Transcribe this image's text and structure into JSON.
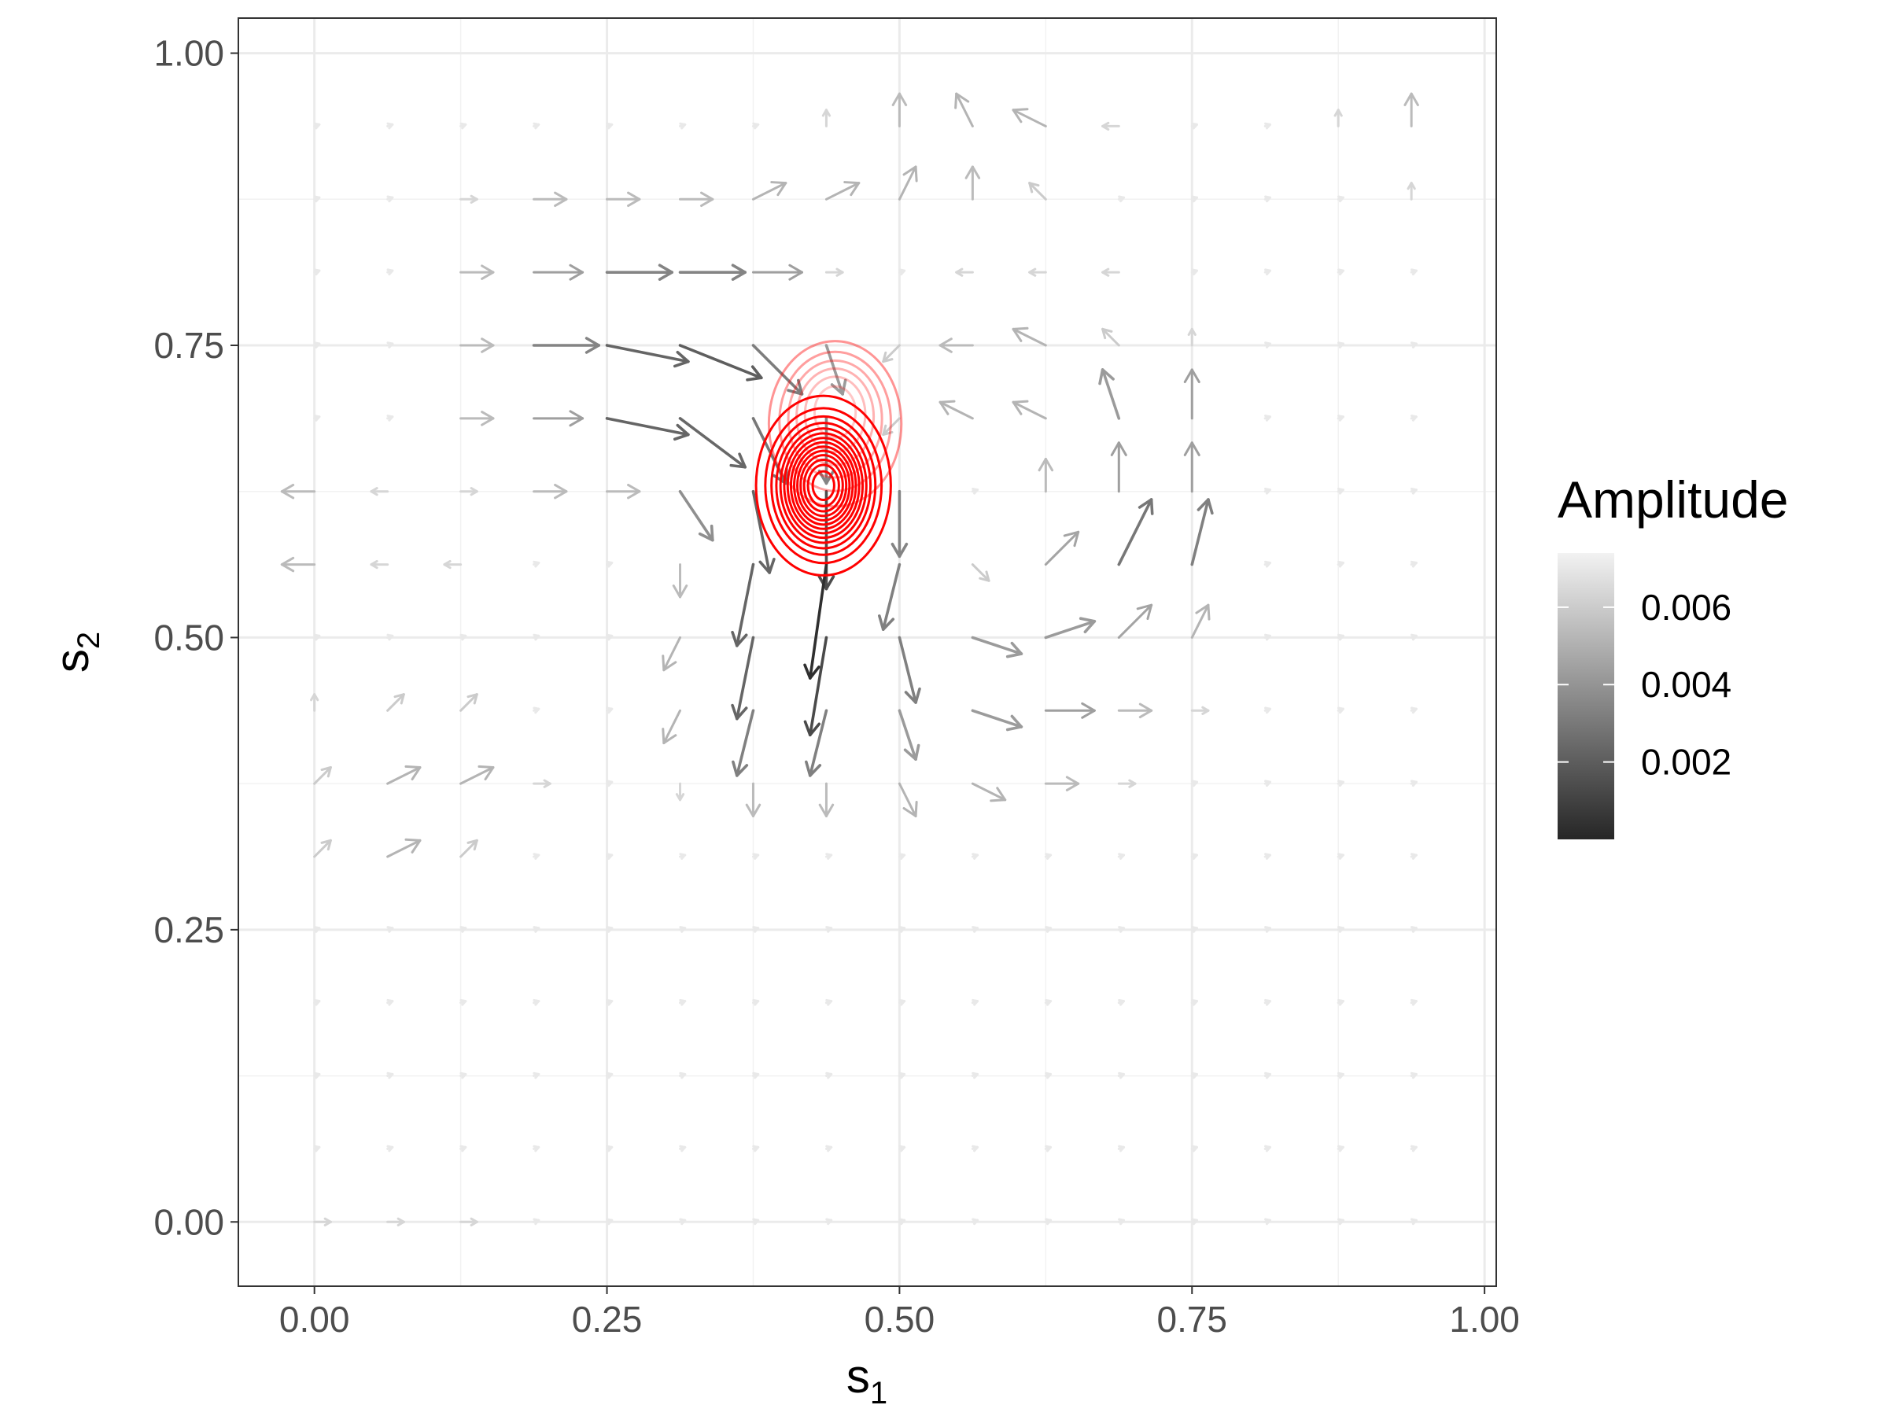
{
  "chart_data": {
    "type": "vector-field-contour",
    "xlabel": "s",
    "xlabel_sub": "1",
    "ylabel": "s",
    "ylabel_sub": "2",
    "xlim": [
      -0.065,
      1.01
    ],
    "ylim": [
      -0.055,
      1.03
    ],
    "xticks": [
      0.0,
      0.25,
      0.5,
      0.75,
      1.0
    ],
    "xtick_labels": [
      "0.00",
      "0.25",
      "0.50",
      "0.75",
      "1.00"
    ],
    "yticks": [
      0.0,
      0.25,
      0.5,
      0.75,
      1.0
    ],
    "ytick_labels": [
      "0.00",
      "0.25",
      "0.50",
      "0.75",
      "1.00"
    ],
    "grid": true,
    "legend": {
      "title": "Amplitude",
      "position": "right",
      "range": [
        0,
        0.0074
      ],
      "breaks": [
        0.002,
        0.004,
        0.006
      ],
      "labels": [
        "0.002",
        "0.004",
        "0.006"
      ],
      "low_color": "#f2f2f2",
      "high_color": "#262626"
    },
    "contour": {
      "color": "#ff0000",
      "center": [
        0.435,
        0.63
      ],
      "sigma": [
        0.045,
        0.06
      ],
      "secondary_center": [
        0.445,
        0.695
      ],
      "secondary_sigma": [
        0.04,
        0.05
      ],
      "levels": 14
    },
    "vector_field": {
      "x_grid": [
        0.0,
        0.0625,
        0.125,
        0.1875,
        0.25,
        0.3125,
        0.375,
        0.4375,
        0.5,
        0.5625,
        0.625,
        0.6875,
        0.75,
        0.8125,
        0.875,
        0.9375
      ],
      "y_grid": [
        0.9375,
        0.875,
        0.8125,
        0.75,
        0.6875,
        0.625,
        0.5625,
        0.5,
        0.4375,
        0.375,
        0.3125,
        0.25,
        0.1875,
        0.125,
        0.0625,
        0.0
      ],
      "u": [
        [
          0.0,
          0.0,
          0.0,
          0.0,
          0.0,
          0.0,
          0.0,
          0.0,
          0.0,
          -0.001,
          -0.002,
          -0.001,
          0.0,
          0.0,
          0.0,
          0.0
        ],
        [
          0.0,
          0.0,
          0.001,
          0.002,
          0.002,
          0.002,
          0.002,
          0.002,
          0.001,
          0.0,
          -0.001,
          0.0,
          0.0,
          0.0,
          0.0,
          0.0
        ],
        [
          0.0,
          0.0,
          0.002,
          0.003,
          0.004,
          0.004,
          0.003,
          0.001,
          0.0,
          -0.001,
          -0.001,
          -0.001,
          0.0,
          0.0,
          0.0,
          0.0
        ],
        [
          0.0,
          0.0,
          0.002,
          0.004,
          0.005,
          0.005,
          0.003,
          0.001,
          -0.001,
          -0.002,
          -0.002,
          -0.001,
          0.0,
          0.0,
          0.0,
          0.0
        ],
        [
          0.0,
          0.0,
          0.002,
          0.003,
          0.005,
          0.004,
          0.002,
          0.0,
          -0.001,
          -0.002,
          -0.002,
          -0.001,
          0.0,
          0.0,
          0.0,
          0.0
        ],
        [
          -0.002,
          -0.001,
          0.001,
          0.002,
          0.002,
          0.002,
          0.001,
          0.0,
          0.0,
          0.0,
          0.0,
          0.0,
          0.0,
          0.0,
          0.0,
          0.0
        ],
        [
          -0.002,
          -0.001,
          -0.001,
          0.0,
          0.0,
          0.0,
          -0.001,
          -0.001,
          -0.001,
          0.001,
          0.002,
          0.002,
          0.001,
          0.0,
          0.0,
          0.0
        ],
        [
          0.0,
          0.0,
          0.0,
          0.0,
          0.0,
          -0.001,
          -0.001,
          -0.001,
          0.001,
          0.003,
          0.003,
          0.002,
          0.001,
          0.0,
          0.0,
          0.0
        ],
        [
          0.0,
          0.001,
          0.001,
          0.0,
          0.0,
          -0.001,
          -0.001,
          -0.001,
          0.001,
          0.003,
          0.003,
          0.002,
          0.001,
          0.0,
          0.0,
          0.0
        ],
        [
          0.001,
          0.002,
          0.002,
          0.001,
          0.0,
          0.0,
          0.0,
          0.0,
          0.001,
          0.002,
          0.002,
          0.001,
          0.0,
          0.0,
          0.0,
          0.0
        ],
        [
          0.001,
          0.002,
          0.001,
          0.0,
          0.0,
          0.0,
          0.0,
          0.0,
          0.0,
          0.0,
          0.0,
          0.0,
          0.0,
          0.0,
          0.0,
          0.0
        ],
        [
          0.0,
          0.0,
          0.0,
          0.0,
          0.0,
          0.0,
          0.0,
          0.0,
          0.0,
          0.0,
          0.0,
          0.0,
          0.0,
          0.0,
          0.0,
          0.0
        ],
        [
          0.0,
          0.0,
          0.0,
          0.0,
          0.0,
          0.0,
          0.0,
          0.0,
          0.0,
          0.0,
          0.0,
          0.0,
          0.0,
          0.0,
          0.0,
          0.0
        ],
        [
          0.0,
          0.0,
          0.0,
          0.0,
          0.0,
          0.0,
          0.0,
          0.0,
          0.0,
          0.0,
          0.0,
          0.0,
          0.0,
          0.0,
          0.0,
          0.0
        ],
        [
          0.0,
          0.0,
          0.0,
          0.0,
          0.0,
          0.0,
          0.0,
          0.0,
          0.0,
          0.0,
          0.0,
          0.0,
          0.0,
          0.0,
          0.0,
          0.0
        ],
        [
          0.001,
          0.001,
          0.001,
          0.0,
          0.0,
          0.0,
          0.0,
          0.0,
          0.0,
          0.0,
          0.0,
          0.0,
          0.0,
          0.0,
          0.0,
          0.0
        ]
      ],
      "v": [
        [
          0.0,
          0.0,
          0.0,
          0.0,
          0.0,
          0.0,
          0.0,
          0.001,
          0.002,
          0.002,
          0.001,
          0.0,
          0.0,
          0.0,
          0.001,
          0.002
        ],
        [
          0.0,
          0.0,
          0.0,
          0.0,
          0.0,
          0.0,
          0.001,
          0.001,
          0.002,
          0.002,
          0.001,
          0.0,
          0.0,
          0.0,
          0.0,
          0.001
        ],
        [
          0.0,
          0.0,
          0.0,
          0.0,
          0.0,
          0.0,
          0.0,
          0.0,
          0.0,
          0.0,
          0.0,
          0.0,
          0.0,
          0.0,
          0.0,
          0.0
        ],
        [
          0.0,
          0.0,
          0.0,
          0.0,
          -0.001,
          -0.002,
          -0.003,
          -0.003,
          -0.001,
          0.0,
          0.001,
          0.001,
          0.001,
          0.0,
          0.0,
          0.0
        ],
        [
          0.0,
          0.0,
          0.0,
          0.0,
          -0.001,
          -0.003,
          -0.004,
          -0.004,
          -0.001,
          0.001,
          0.001,
          0.003,
          0.003,
          0.0,
          0.0,
          0.0
        ],
        [
          0.0,
          0.0,
          0.0,
          0.0,
          0.0,
          -0.003,
          -0.005,
          -0.006,
          -0.004,
          0.0,
          0.002,
          0.003,
          0.003,
          0.0,
          0.0,
          0.0
        ],
        [
          0.0,
          0.0,
          0.0,
          0.0,
          0.0,
          -0.002,
          -0.005,
          -0.007,
          -0.004,
          -0.001,
          0.002,
          0.004,
          0.004,
          0.0,
          0.0,
          0.0
        ],
        [
          0.0,
          0.0,
          0.0,
          0.0,
          0.0,
          -0.002,
          -0.005,
          -0.006,
          -0.004,
          -0.001,
          0.001,
          0.002,
          0.002,
          0.0,
          0.0,
          0.0
        ],
        [
          0.001,
          0.001,
          0.001,
          0.0,
          0.0,
          -0.002,
          -0.004,
          -0.004,
          -0.003,
          -0.001,
          0.0,
          0.0,
          0.0,
          0.0,
          0.0,
          0.0
        ],
        [
          0.001,
          0.001,
          0.001,
          0.0,
          0.0,
          -0.001,
          -0.002,
          -0.002,
          -0.002,
          -0.001,
          0.0,
          0.0,
          0.0,
          0.0,
          0.0,
          0.0
        ],
        [
          0.001,
          0.001,
          0.001,
          0.0,
          0.0,
          0.0,
          0.0,
          0.0,
          0.0,
          0.0,
          0.0,
          0.0,
          0.0,
          0.0,
          0.0,
          0.0
        ],
        [
          0.0,
          0.0,
          0.0,
          0.0,
          0.0,
          0.0,
          0.0,
          0.0,
          0.0,
          0.0,
          0.0,
          0.0,
          0.0,
          0.0,
          0.0,
          0.0
        ],
        [
          0.0,
          0.0,
          0.0,
          0.0,
          0.0,
          0.0,
          0.0,
          0.0,
          0.0,
          0.0,
          0.0,
          0.0,
          0.0,
          0.0,
          0.0,
          0.0
        ],
        [
          0.0,
          0.0,
          0.0,
          0.0,
          0.0,
          0.0,
          0.0,
          0.0,
          0.0,
          0.0,
          0.0,
          0.0,
          0.0,
          0.0,
          0.0,
          0.0
        ],
        [
          0.0,
          0.0,
          0.0,
          0.0,
          0.0,
          0.0,
          0.0,
          0.0,
          0.0,
          0.0,
          0.0,
          0.0,
          0.0,
          0.0,
          0.0,
          0.0
        ],
        [
          0.0,
          0.0,
          0.0,
          0.0,
          0.0,
          0.0,
          0.0,
          0.0,
          0.0,
          0.0,
          0.0,
          0.0,
          0.0,
          0.0,
          0.0,
          0.0
        ]
      ]
    }
  }
}
